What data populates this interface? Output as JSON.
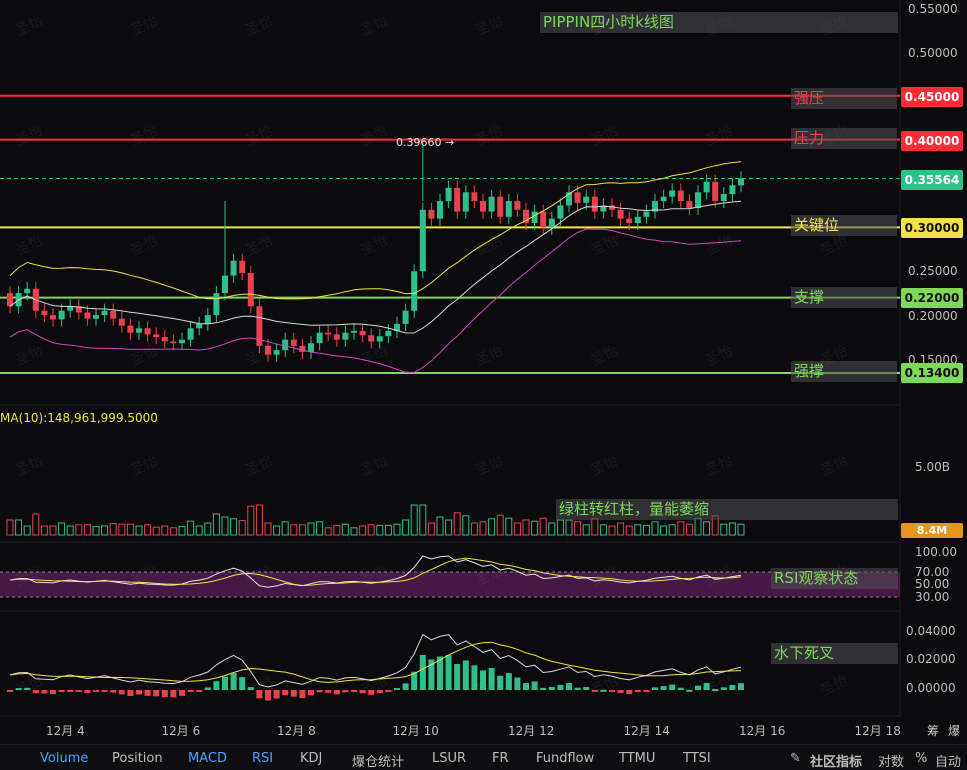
{
  "chart_data": {
    "type": "candlestick",
    "title": "PIPPIN四小时k线图",
    "x_ticks": [
      "12月 4",
      "12月 6",
      "12月 8",
      "12月 10",
      "12月 12",
      "12月 14",
      "12月 16",
      "12月 18"
    ],
    "price_axis": [
      "0.55000",
      "0.50000",
      "0.25000",
      "0.20000",
      "0.15000"
    ],
    "current_price": "0.35564",
    "max_marker": "0.39660",
    "levels": [
      {
        "name": "强压",
        "value": "0.45000",
        "color": "#ff2b36"
      },
      {
        "name": "压力",
        "value": "0.40000",
        "color": "#ff2b36"
      },
      {
        "name": "关键位",
        "value": "0.30000",
        "color": "#f2e24a"
      },
      {
        "name": "支撑",
        "value": "0.22000",
        "color": "#7ed957"
      },
      {
        "name": "强撑",
        "value": "0.13400",
        "color": "#7ed957"
      }
    ],
    "candles": [
      [
        0.225,
        0.21
      ],
      [
        0.21,
        0.225
      ],
      [
        0.225,
        0.23
      ],
      [
        0.23,
        0.205
      ],
      [
        0.205,
        0.2
      ],
      [
        0.2,
        0.195
      ],
      [
        0.195,
        0.205
      ],
      [
        0.205,
        0.21
      ],
      [
        0.21,
        0.203
      ],
      [
        0.203,
        0.196
      ],
      [
        0.196,
        0.2
      ],
      [
        0.2,
        0.205
      ],
      [
        0.205,
        0.196
      ],
      [
        0.196,
        0.188
      ],
      [
        0.188,
        0.18
      ],
      [
        0.18,
        0.185
      ],
      [
        0.185,
        0.178
      ],
      [
        0.178,
        0.175
      ],
      [
        0.175,
        0.17
      ],
      [
        0.17,
        0.168
      ],
      [
        0.168,
        0.172
      ],
      [
        0.172,
        0.185
      ],
      [
        0.185,
        0.19
      ],
      [
        0.19,
        0.2
      ],
      [
        0.2,
        0.225
      ],
      [
        0.225,
        0.245
      ],
      [
        0.245,
        0.262
      ],
      [
        0.262,
        0.248
      ],
      [
        0.248,
        0.21
      ],
      [
        0.21,
        0.165
      ],
      [
        0.165,
        0.155
      ],
      [
        0.155,
        0.16
      ],
      [
        0.16,
        0.172
      ],
      [
        0.172,
        0.165
      ],
      [
        0.165,
        0.158
      ],
      [
        0.158,
        0.168
      ],
      [
        0.168,
        0.18
      ],
      [
        0.18,
        0.178
      ],
      [
        0.178,
        0.172
      ],
      [
        0.172,
        0.18
      ],
      [
        0.18,
        0.182
      ],
      [
        0.182,
        0.177
      ],
      [
        0.177,
        0.17
      ],
      [
        0.17,
        0.176
      ],
      [
        0.176,
        0.182
      ],
      [
        0.182,
        0.19
      ],
      [
        0.19,
        0.205
      ],
      [
        0.205,
        0.25
      ],
      [
        0.25,
        0.32
      ],
      [
        0.32,
        0.31
      ],
      [
        0.31,
        0.33
      ],
      [
        0.33,
        0.345
      ],
      [
        0.345,
        0.318
      ],
      [
        0.318,
        0.34
      ],
      [
        0.34,
        0.33
      ],
      [
        0.33,
        0.318
      ],
      [
        0.318,
        0.335
      ],
      [
        0.335,
        0.312
      ],
      [
        0.312,
        0.33
      ],
      [
        0.33,
        0.32
      ],
      [
        0.32,
        0.305
      ],
      [
        0.305,
        0.318
      ],
      [
        0.318,
        0.3
      ],
      [
        0.3,
        0.31
      ],
      [
        0.31,
        0.325
      ],
      [
        0.325,
        0.34
      ],
      [
        0.34,
        0.328
      ],
      [
        0.328,
        0.335
      ],
      [
        0.335,
        0.318
      ],
      [
        0.318,
        0.325
      ],
      [
        0.325,
        0.32
      ],
      [
        0.32,
        0.31
      ],
      [
        0.31,
        0.305
      ],
      [
        0.305,
        0.312
      ],
      [
        0.312,
        0.318
      ],
      [
        0.318,
        0.33
      ],
      [
        0.33,
        0.335
      ],
      [
        0.335,
        0.342
      ],
      [
        0.342,
        0.33
      ],
      [
        0.33,
        0.322
      ],
      [
        0.322,
        0.34
      ],
      [
        0.34,
        0.352
      ],
      [
        0.352,
        0.33
      ],
      [
        0.33,
        0.338
      ],
      [
        0.338,
        0.348
      ],
      [
        0.348,
        0.356
      ]
    ],
    "volume_label": "MA(10):148,961,999.5000",
    "volume_axis": "5.00B",
    "volume_current": "8.4M",
    "rsi_axis": [
      "100.00",
      "70.00",
      "50.00",
      "30.00"
    ],
    "macd_axis": [
      "0.04000",
      "0.02000",
      "0.00000"
    ]
  },
  "annotations": {
    "title": "PIPPIN四小时k线图",
    "volume_note": "绿柱转红柱，量能萎缩",
    "rsi_note": "RSI观察状态",
    "macd_note": "水下死叉"
  },
  "watermark": "圣怡",
  "toolbar": {
    "items": [
      "Volume",
      "Position",
      "MACD",
      "RSI",
      "KDJ",
      "爆仓统计",
      "LSUR",
      "FR",
      "Fundflow",
      "TTMU",
      "TTSI"
    ],
    "right": [
      "社区指标",
      "对数",
      "%",
      "自动"
    ],
    "extra": [
      "筹",
      "爆"
    ]
  },
  "colors": {
    "up": "#2fbf8a",
    "down": "#e8424e",
    "ma": "#f2e24a",
    "bg": "#0b0b0d"
  }
}
